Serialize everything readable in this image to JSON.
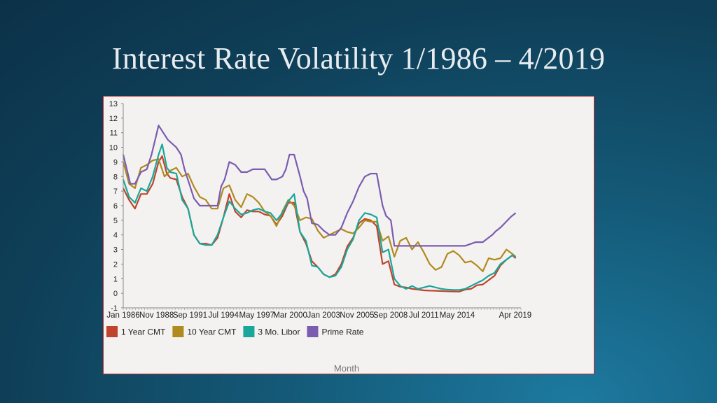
{
  "slide": {
    "title": "Interest Rate Volatility 1/1986 – 4/2019"
  },
  "colors": {
    "one_year_cmt": "#c0432b",
    "ten_year_cmt": "#b08a1e",
    "three_mo_libor": "#1aa79b",
    "prime_rate": "#7a5cb0"
  },
  "chart_data": {
    "type": "line",
    "xlabel": "Month",
    "ylabel": "",
    "ylim": [
      -1,
      13
    ],
    "xlim": [
      1986.0,
      2019.5
    ],
    "yticks": [
      "-1",
      "0",
      "1",
      "2",
      "3",
      "4",
      "5",
      "6",
      "7",
      "8",
      "9",
      "10",
      "11",
      "12",
      "13"
    ],
    "xticks": [
      "Jan 1986",
      "Nov 1988",
      "Sep 1991",
      "Jul 1994",
      "May 1997",
      "Mar 2000",
      "Jan 2003",
      "Nov 2005",
      "Sep 2008",
      "Jul 2011",
      "May 2014",
      "Apr 2019"
    ],
    "xtick_positions": [
      1986.0,
      1988.83,
      1991.67,
      1994.5,
      1997.33,
      2000.17,
      2003.0,
      2005.83,
      2008.67,
      2011.5,
      2014.33,
      2019.25
    ],
    "legend_position": "bottom-left",
    "series": [
      {
        "name": "1 Year CMT",
        "x": [
          1986,
          1986.5,
          1987,
          1987.5,
          1988,
          1988.5,
          1989,
          1989.3,
          1989.7,
          1990,
          1990.5,
          1991,
          1991.5,
          1992,
          1992.5,
          1993,
          1993.5,
          1994,
          1994.5,
          1995,
          1995.5,
          1996,
          1996.5,
          1997,
          1997.5,
          1998,
          1998.5,
          1999,
          1999.5,
          2000,
          2000.5,
          2001,
          2001.5,
          2002,
          2002.5,
          2003,
          2003.5,
          2004,
          2004.5,
          2005,
          2005.5,
          2006,
          2006.5,
          2007,
          2007.5,
          2008,
          2008.5,
          2009,
          2009.5,
          2010,
          2010.5,
          2011,
          2011.5,
          2012,
          2012.5,
          2013,
          2013.5,
          2014,
          2014.5,
          2015,
          2015.5,
          2016,
          2016.5,
          2017,
          2017.5,
          2018,
          2018.5,
          2019,
          2019.3
        ],
        "values": [
          7.2,
          6.4,
          5.8,
          6.8,
          6.8,
          7.5,
          9.0,
          9.4,
          8.2,
          7.9,
          7.8,
          6.6,
          5.8,
          4.0,
          3.4,
          3.4,
          3.3,
          3.8,
          5.2,
          6.8,
          5.6,
          5.2,
          5.7,
          5.6,
          5.6,
          5.4,
          5.3,
          4.7,
          5.3,
          6.2,
          6.2,
          4.2,
          3.4,
          2.2,
          1.8,
          1.3,
          1.1,
          1.3,
          2.0,
          3.2,
          3.8,
          4.8,
          5.1,
          5.0,
          4.6,
          2.0,
          2.2,
          0.6,
          0.45,
          0.4,
          0.3,
          0.25,
          0.2,
          0.18,
          0.17,
          0.15,
          0.13,
          0.12,
          0.11,
          0.25,
          0.3,
          0.55,
          0.6,
          0.9,
          1.2,
          1.9,
          2.3,
          2.6,
          2.4
        ]
      },
      {
        "name": "10 Year CMT",
        "x": [
          1986,
          1986.5,
          1987,
          1987.5,
          1988,
          1988.5,
          1989,
          1989.5,
          1990,
          1990.5,
          1991,
          1991.5,
          1992,
          1992.5,
          1993,
          1993.5,
          1994,
          1994.5,
          1995,
          1995.5,
          1996,
          1996.5,
          1997,
          1997.5,
          1998,
          1998.5,
          1999,
          1999.5,
          2000,
          2000.5,
          2001,
          2001.5,
          2002,
          2002.5,
          2003,
          2003.5,
          2004,
          2004.5,
          2005,
          2005.5,
          2006,
          2006.5,
          2007,
          2007.5,
          2008,
          2008.5,
          2009,
          2009.5,
          2010,
          2010.5,
          2011,
          2011.5,
          2012,
          2012.5,
          2013,
          2013.5,
          2014,
          2014.5,
          2015,
          2015.5,
          2016,
          2016.5,
          2017,
          2017.5,
          2018,
          2018.5,
          2019,
          2019.3
        ],
        "values": [
          9.0,
          7.5,
          7.2,
          8.6,
          8.8,
          9.1,
          9.2,
          8.0,
          8.4,
          8.6,
          8.0,
          8.2,
          7.3,
          6.6,
          6.4,
          5.8,
          5.8,
          7.2,
          7.4,
          6.4,
          5.9,
          6.8,
          6.6,
          6.2,
          5.6,
          5.3,
          4.6,
          5.6,
          6.4,
          6.0,
          5.0,
          5.2,
          5.1,
          4.3,
          3.8,
          4.0,
          4.2,
          4.4,
          4.2,
          4.1,
          4.5,
          5.0,
          4.9,
          4.9,
          3.6,
          3.9,
          2.5,
          3.6,
          3.8,
          3.0,
          3.5,
          2.8,
          2.0,
          1.6,
          1.8,
          2.7,
          2.9,
          2.6,
          2.1,
          2.2,
          1.9,
          1.5,
          2.4,
          2.3,
          2.4,
          3.0,
          2.7,
          2.5
        ]
      },
      {
        "name": "3 Mo. Libor",
        "x": [
          1986,
          1986.5,
          1987,
          1987.5,
          1988,
          1988.5,
          1989,
          1989.3,
          1989.7,
          1990,
          1990.5,
          1991,
          1991.5,
          1992,
          1992.5,
          1993,
          1993.5,
          1994,
          1994.5,
          1995,
          1995.5,
          1996,
          1996.5,
          1997,
          1997.5,
          1998,
          1998.5,
          1999,
          1999.5,
          2000,
          2000.5,
          2001,
          2001.5,
          2002,
          2002.5,
          2003,
          2003.5,
          2004,
          2004.5,
          2005,
          2005.5,
          2006,
          2006.5,
          2007,
          2007.5,
          2008,
          2008.5,
          2009,
          2009.5,
          2010,
          2010.5,
          2011,
          2011.5,
          2012,
          2012.5,
          2013,
          2013.5,
          2014,
          2014.5,
          2015,
          2015.5,
          2016,
          2016.5,
          2017,
          2017.5,
          2018,
          2018.5,
          2019,
          2019.3
        ],
        "values": [
          7.8,
          6.6,
          6.2,
          7.2,
          7.0,
          8.0,
          9.5,
          10.2,
          8.6,
          8.3,
          8.2,
          6.4,
          5.8,
          4.0,
          3.4,
          3.3,
          3.3,
          4.0,
          5.2,
          6.3,
          5.8,
          5.4,
          5.5,
          5.7,
          5.8,
          5.6,
          5.5,
          5.0,
          5.5,
          6.3,
          6.8,
          4.2,
          3.6,
          1.9,
          1.8,
          1.3,
          1.1,
          1.2,
          1.8,
          3.0,
          3.7,
          5.0,
          5.5,
          5.4,
          5.2,
          2.8,
          3.0,
          1.0,
          0.5,
          0.3,
          0.5,
          0.3,
          0.4,
          0.5,
          0.4,
          0.3,
          0.25,
          0.23,
          0.23,
          0.3,
          0.5,
          0.7,
          0.9,
          1.2,
          1.4,
          2.0,
          2.3,
          2.6,
          2.5
        ]
      },
      {
        "name": "Prime Rate",
        "x": [
          1986,
          1986.3,
          1986.6,
          1987,
          1987.5,
          1988,
          1988.4,
          1988.7,
          1989,
          1989.4,
          1989.8,
          1990.5,
          1990.9,
          1991.2,
          1991.6,
          1992,
          1992.5,
          1993,
          1993.5,
          1994,
          1994.3,
          1994.6,
          1995,
          1995.5,
          1996,
          1996.5,
          1997,
          1997.5,
          1998,
          1998.6,
          1999,
          1999.5,
          1999.8,
          2000.1,
          2000.5,
          2001,
          2001.3,
          2001.6,
          2002,
          2002.5,
          2003,
          2003.5,
          2004,
          2004.5,
          2005,
          2005.5,
          2006,
          2006.5,
          2007,
          2007.5,
          2008,
          2008.3,
          2008.7,
          2009,
          2010,
          2011,
          2012,
          2013,
          2014,
          2015,
          2015.9,
          2016.5,
          2016.9,
          2017.3,
          2017.6,
          2018,
          2018.3,
          2018.6,
          2018.9,
          2019.3
        ],
        "values": [
          9.5,
          8.5,
          7.5,
          7.5,
          8.3,
          8.5,
          9.5,
          10.5,
          11.5,
          11.0,
          10.5,
          10.0,
          9.5,
          8.5,
          7.5,
          6.5,
          6.0,
          6.0,
          6.0,
          6.0,
          7.3,
          7.8,
          9.0,
          8.8,
          8.3,
          8.3,
          8.5,
          8.5,
          8.5,
          7.8,
          7.8,
          8.0,
          8.5,
          9.5,
          9.5,
          8.0,
          7.0,
          6.5,
          4.8,
          4.7,
          4.3,
          4.0,
          4.0,
          4.5,
          5.5,
          6.3,
          7.3,
          8.0,
          8.2,
          8.2,
          6.0,
          5.3,
          5.0,
          3.25,
          3.25,
          3.25,
          3.25,
          3.25,
          3.25,
          3.25,
          3.5,
          3.5,
          3.75,
          4.0,
          4.25,
          4.5,
          4.75,
          5.0,
          5.25,
          5.5
        ]
      }
    ]
  }
}
